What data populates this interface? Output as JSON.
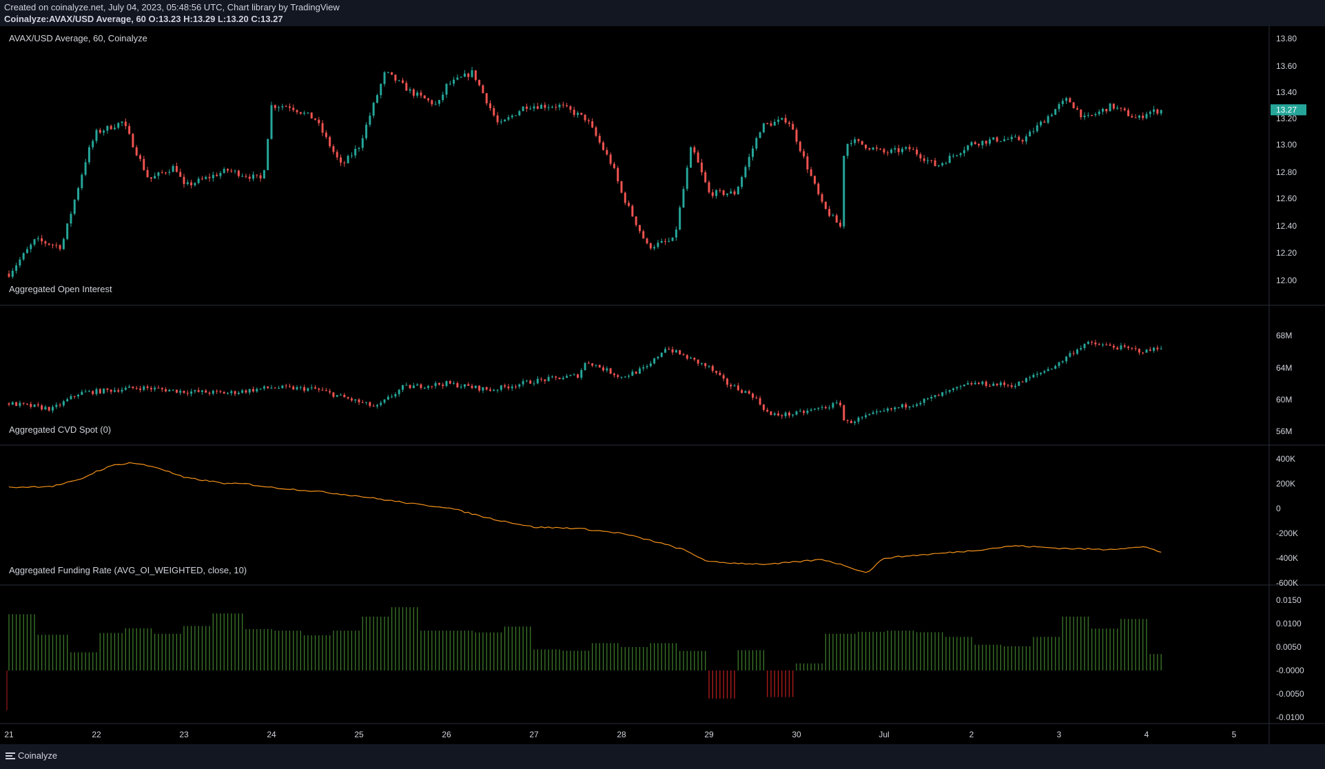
{
  "header": {
    "line1": "Created on coinalyze.net, July 04, 2023, 05:48:56 UTC, Chart library by TradingView",
    "line2": "Coinalyze:AVAX/USD Average, 60 O:13.23 H:13.29 L:13.20 C:13.27"
  },
  "footer": {
    "brand": "Coinalyze",
    "menu_icon": "hamburger-menu-icon"
  },
  "colors": {
    "up": "#26a69a",
    "down": "#ef5350",
    "cvd": "#f7931a",
    "fund_pos": "#3d7a2a",
    "fund_neg": "#b71c1c",
    "grid": "#2a2e39",
    "last_price_bg": "#26a69a"
  },
  "chart_data": [
    {
      "type": "candlestick",
      "title": "AVAX/USD Average, 60, Coinalyze",
      "y_ticks": [
        "13.80",
        "13.60",
        "13.40",
        "13.20",
        "13.00",
        "12.80",
        "12.60",
        "12.40",
        "12.20",
        "12.00"
      ],
      "ylim": [
        11.9,
        13.85
      ],
      "last_price": "13.27",
      "x_key": [
        0,
        0.3,
        0.6,
        0.9,
        1.0,
        1.3,
        1.6,
        1.9,
        2.0,
        2.5,
        2.9,
        3.0,
        3.2,
        3.5,
        3.8,
        4.0,
        4.3,
        4.6,
        4.9,
        5.0,
        5.3,
        5.6,
        5.9,
        6.0,
        6.3,
        6.6,
        6.9,
        7.0,
        7.3,
        7.6,
        7.8,
        8.0,
        8.3,
        8.6,
        8.9,
        9.0,
        9.3,
        9.5,
        9.52,
        9.6,
        10.0,
        10.3,
        10.6,
        11.0,
        11.3,
        11.6,
        12.0,
        12.1,
        12.3,
        12.6,
        12.9,
        13.0,
        13.2
      ],
      "y_key": [
        12.05,
        12.3,
        12.25,
        12.95,
        13.1,
        13.18,
        12.75,
        12.85,
        12.7,
        12.82,
        12.75,
        13.3,
        13.3,
        13.2,
        12.85,
        13.0,
        13.55,
        13.4,
        13.3,
        13.45,
        13.55,
        13.15,
        13.3,
        13.3,
        13.3,
        13.2,
        12.85,
        12.65,
        12.25,
        12.3,
        13.0,
        12.65,
        12.65,
        13.15,
        13.2,
        13.05,
        12.55,
        12.4,
        12.9,
        13.05,
        12.95,
        12.98,
        12.85,
        13.02,
        13.05,
        13.05,
        13.3,
        13.35,
        13.2,
        13.3,
        13.2,
        13.25,
        13.27
      ]
    },
    {
      "type": "candlestick",
      "title": "Aggregated Open Interest",
      "y_ticks": [
        "68M",
        "64M",
        "60M",
        "56M"
      ],
      "ylim": [
        55,
        70
      ],
      "x_key": [
        0,
        0.5,
        0.8,
        1.0,
        1.5,
        2.0,
        2.5,
        3.0,
        3.5,
        3.9,
        4.2,
        4.5,
        5.0,
        5.5,
        6.0,
        6.5,
        6.6,
        7.0,
        7.3,
        7.5,
        7.8,
        8.0,
        8.2,
        8.5,
        8.7,
        9.0,
        9.5,
        9.55,
        10.0,
        10.5,
        11.0,
        11.5,
        12.0,
        12.1,
        12.3,
        12.5,
        13.0,
        13.2
      ],
      "y_key": [
        59.5,
        58.8,
        60.8,
        61.0,
        61.5,
        61.0,
        60.8,
        61.5,
        61.3,
        60.0,
        59.0,
        61.5,
        62.0,
        61.2,
        62.3,
        63.0,
        64.8,
        62.8,
        64.0,
        66.5,
        65.0,
        64.0,
        62.0,
        60.5,
        58.0,
        58.2,
        59.5,
        57.0,
        58.5,
        60.0,
        62.0,
        61.8,
        64.5,
        65.5,
        67.0,
        66.8,
        66.0,
        66.8
      ]
    },
    {
      "type": "line",
      "title": "Aggregated CVD Spot (0)",
      "y_ticks": [
        "400K",
        "200K",
        "0",
        "-200K",
        "-400K",
        "-600K"
      ],
      "ylim": [
        -620000,
        420000
      ],
      "x": [
        0,
        0.5,
        0.8,
        1.0,
        1.2,
        1.4,
        1.7,
        2.0,
        2.5,
        2.7,
        3.0,
        3.5,
        4.0,
        4.3,
        4.7,
        5.0,
        5.5,
        6.0,
        6.5,
        7.0,
        7.4,
        7.7,
        8.0,
        8.3,
        8.7,
        9.0,
        9.3,
        9.6,
        9.8,
        10.0,
        10.3,
        10.5,
        11.0,
        11.5,
        12.0,
        12.5,
        13.0,
        13.2
      ],
      "values": [
        170000,
        180000,
        230000,
        300000,
        350000,
        370000,
        330000,
        250000,
        200000,
        200000,
        170000,
        140000,
        100000,
        70000,
        30000,
        10000,
        -80000,
        -150000,
        -160000,
        -200000,
        -270000,
        -330000,
        -430000,
        -440000,
        -450000,
        -430000,
        -410000,
        -470000,
        -520000,
        -400000,
        -380000,
        -370000,
        -340000,
        -300000,
        -320000,
        -330000,
        -310000,
        -360000
      ]
    },
    {
      "type": "bar",
      "title": "Aggregated Funding Rate (AVG_OI_WEIGHTED, close, 10)",
      "y_ticks": [
        "0.0150",
        "0.0100",
        "0.0050",
        "-0.0000",
        "-0.0050",
        "-0.0100"
      ],
      "ylim": [
        -0.0115,
        0.0162
      ],
      "x_key": [
        0,
        0.3,
        0.7,
        1.0,
        1.5,
        1.7,
        2.0,
        2.3,
        2.7,
        2.8,
        3.0,
        3.5,
        4.0,
        4.3,
        4.5,
        5.0,
        5.3,
        5.7,
        6.0,
        6.3,
        6.6,
        7.0,
        7.3,
        7.7,
        8.0,
        8.2,
        8.3,
        8.5,
        8.7,
        9.0,
        9.3,
        9.5,
        9.7,
        10.0,
        10.5,
        11.0,
        11.5,
        12.0,
        12.3,
        12.6,
        13.0,
        13.2
      ],
      "y_key": [
        0.012,
        0.008,
        0.0035,
        0.008,
        0.0095,
        0.0075,
        0.0095,
        0.0125,
        0.0085,
        0.0065,
        0.0085,
        0.007,
        0.0115,
        0.0145,
        0.0085,
        0.0085,
        0.008,
        0.0095,
        0.0045,
        0.004,
        0.006,
        0.005,
        0.006,
        0.004,
        -0.006,
        -0.004,
        0.007,
        -0.009,
        -0.005,
        0.0015,
        0.0075,
        0.0095,
        0.008,
        0.0085,
        0.008,
        0.0055,
        0.005,
        0.0115,
        0.0085,
        0.0125,
        0.0035,
        0.0035
      ]
    }
  ],
  "x_axis": {
    "labels": [
      "21",
      "22",
      "23",
      "24",
      "25",
      "26",
      "27",
      "28",
      "29",
      "30",
      "Jul",
      "2",
      "3",
      "4",
      "5"
    ]
  }
}
